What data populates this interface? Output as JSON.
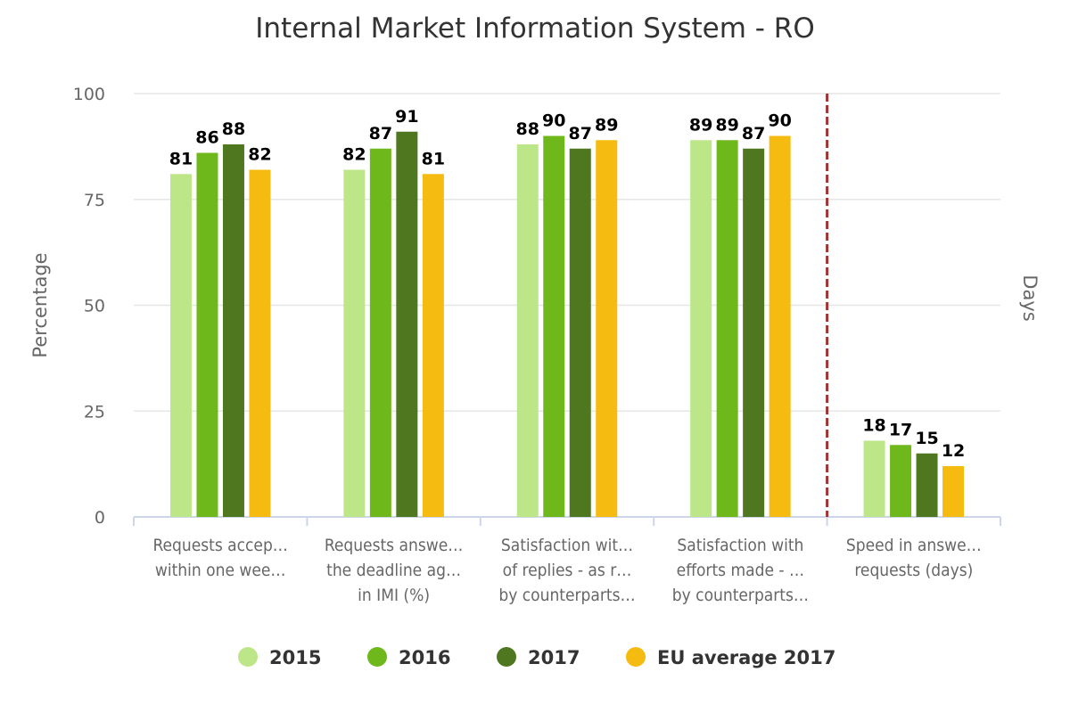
{
  "chart_data": {
    "type": "bar",
    "title": "Internal Market Information System - RO",
    "ylabel": "Percentage",
    "ylabel_right": "Days",
    "ylim": [
      0,
      100
    ],
    "yticks": [
      "0",
      "25",
      "50",
      "75",
      "100"
    ],
    "grid": true,
    "legend_placement": "bottom",
    "categories": [
      [
        "Requests accep…",
        "within one wee…"
      ],
      [
        "Requests answe…",
        "the deadline ag…",
        "in IMI (%)"
      ],
      [
        "Satisfaction wit…",
        "of replies - as r…",
        "by counterparts…"
      ],
      [
        "Satisfaction with",
        "efforts made - …",
        "by counterparts…"
      ],
      [
        "Speed in answe…",
        "requests (days)"
      ]
    ],
    "series": [
      {
        "name": "2015",
        "color": "#bde688",
        "values": [
          81,
          82,
          88,
          89,
          18
        ]
      },
      {
        "name": "2016",
        "color": "#6fb81b",
        "values": [
          86,
          87,
          90,
          89,
          17
        ]
      },
      {
        "name": "2017",
        "color": "#4e7720",
        "values": [
          88,
          91,
          87,
          87,
          15
        ]
      },
      {
        "name": "EU average 2017",
        "color": "#f5bb10",
        "values": [
          82,
          81,
          89,
          90,
          12
        ]
      }
    ],
    "separator": {
      "after_category": 4,
      "color": "#a33333",
      "style": "dashed"
    }
  }
}
